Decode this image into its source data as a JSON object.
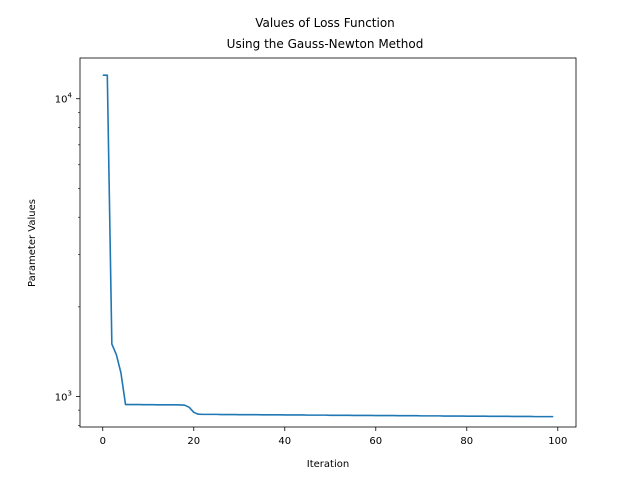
{
  "chart_data": {
    "type": "line",
    "title": "Values of Loss Function",
    "subtitle": "Using the Gauss-Newton Method",
    "xlabel": "Iteration",
    "ylabel": "Parameter Values",
    "yscale": "log",
    "xlim": [
      -5,
      104
    ],
    "ylim": [
      790,
      13700
    ],
    "grid": false,
    "x_ticks": [
      0,
      20,
      40,
      60,
      80,
      100
    ],
    "x_tick_labels": [
      "0",
      "20",
      "40",
      "60",
      "80",
      "100"
    ],
    "y_major_ticks": [
      1000,
      10000
    ],
    "y_major_tick_labels": [
      {
        "base": "10",
        "exp": "3"
      },
      {
        "base": "10",
        "exp": "4"
      }
    ],
    "y_minor_ticks": [
      800,
      900,
      2000,
      3000,
      4000,
      5000,
      6000,
      7000,
      8000,
      9000
    ],
    "series": [
      {
        "color": "#1f77b4",
        "x": [
          0,
          1,
          2,
          3,
          4,
          5,
          6,
          7,
          8,
          9,
          10,
          11,
          12,
          13,
          14,
          15,
          16,
          17,
          18,
          19,
          20,
          21,
          22,
          23,
          24,
          25,
          26,
          27,
          28,
          29,
          30,
          31,
          32,
          33,
          34,
          35,
          36,
          37,
          38,
          39,
          40,
          41,
          42,
          43,
          44,
          45,
          46,
          47,
          48,
          49,
          50,
          51,
          52,
          53,
          54,
          55,
          56,
          57,
          58,
          59,
          60,
          61,
          62,
          63,
          64,
          65,
          66,
          67,
          68,
          69,
          70,
          71,
          72,
          73,
          74,
          75,
          76,
          77,
          78,
          79,
          80,
          81,
          82,
          83,
          84,
          85,
          86,
          87,
          88,
          89,
          90,
          91,
          92,
          93,
          94,
          95,
          96,
          97,
          98,
          99
        ],
        "y": [
          12000,
          12000,
          1500,
          1380,
          1200,
          940,
          940,
          940,
          940,
          939,
          939,
          939,
          938,
          938,
          938,
          938,
          938,
          937,
          935,
          920,
          885,
          872,
          871,
          871,
          871,
          871,
          870,
          870,
          870,
          870,
          869,
          869,
          869,
          869,
          869,
          868,
          868,
          868,
          868,
          868,
          867,
          867,
          867,
          867,
          867,
          866,
          866,
          866,
          866,
          866,
          865,
          865,
          865,
          865,
          865,
          864,
          864,
          864,
          864,
          864,
          863,
          863,
          863,
          863,
          863,
          862,
          862,
          862,
          862,
          862,
          861,
          861,
          861,
          861,
          861,
          860,
          860,
          860,
          860,
          860,
          859,
          859,
          859,
          859,
          859,
          858,
          858,
          858,
          858,
          858,
          857,
          857,
          857,
          857,
          857,
          856,
          856,
          856,
          856,
          856
        ]
      }
    ]
  }
}
